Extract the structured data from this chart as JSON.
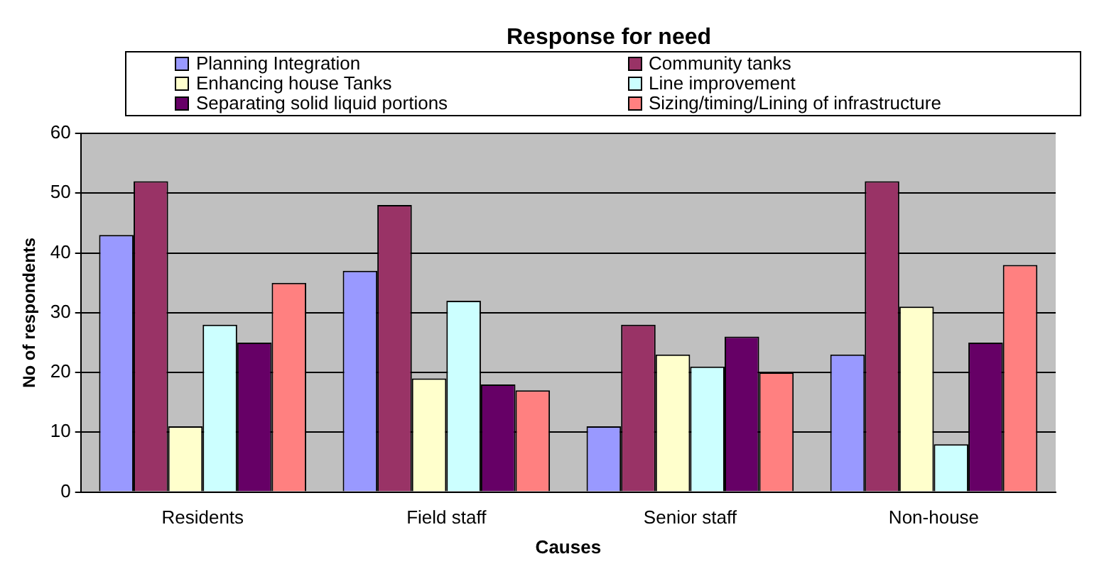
{
  "chart_data": {
    "type": "bar",
    "title": "Response for need",
    "xlabel": "Causes",
    "ylabel": "No of respondents",
    "categories": [
      "Residents",
      "Field staff",
      "Senior staff",
      "Non-house"
    ],
    "series": [
      {
        "name": "Planning Integration",
        "color": "#9999ff",
        "values": [
          43,
          37,
          11,
          23
        ]
      },
      {
        "name": "Community tanks",
        "color": "#993366",
        "values": [
          52,
          48,
          28,
          52
        ]
      },
      {
        "name": "Enhancing house Tanks",
        "color": "#ffffcc",
        "values": [
          11,
          19,
          23,
          31
        ]
      },
      {
        "name": "Line improvement",
        "color": "#ccffff",
        "values": [
          28,
          32,
          21,
          8
        ]
      },
      {
        "name": "Separating solid liquid portions",
        "color": "#660066",
        "values": [
          25,
          18,
          26,
          25
        ]
      },
      {
        "name": "Sizing/timing/Lining of infrastructure",
        "color": "#ff8080",
        "values": [
          35,
          17,
          20,
          38
        ]
      }
    ],
    "ylim": [
      0,
      60
    ],
    "yticks": [
      0,
      10,
      20,
      30,
      40,
      50,
      60
    ],
    "grid": "y",
    "legend": "top"
  }
}
